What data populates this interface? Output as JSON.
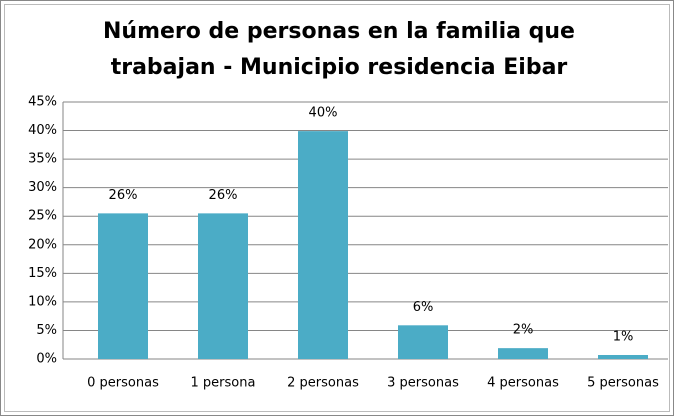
{
  "chart_data": {
    "type": "bar",
    "title": "Número de personas en la familia que trabajan - Municipio residencia Eibar",
    "categories": [
      "0 personas",
      "1 persona",
      "2 personas",
      "3 personas",
      "4 personas",
      "5 personas"
    ],
    "values": [
      25.5,
      25.5,
      39.9,
      5.9,
      1.9,
      0.7
    ],
    "value_labels": [
      "26%",
      "26%",
      "40%",
      "6%",
      "2%",
      "1%"
    ],
    "color": "#4bacc6",
    "ylim": [
      0,
      45
    ],
    "yticks": [
      {
        "value": 0,
        "label": "0%"
      },
      {
        "value": 5,
        "label": "5%"
      },
      {
        "value": 10,
        "label": "10%"
      },
      {
        "value": 15,
        "label": "15%"
      },
      {
        "value": 20,
        "label": "20%"
      },
      {
        "value": 25,
        "label": "25%"
      },
      {
        "value": 30,
        "label": "30%"
      },
      {
        "value": 35,
        "label": "35%"
      },
      {
        "value": 40,
        "label": "40%"
      },
      {
        "value": 45,
        "label": "45%"
      }
    ],
    "grid": true
  }
}
